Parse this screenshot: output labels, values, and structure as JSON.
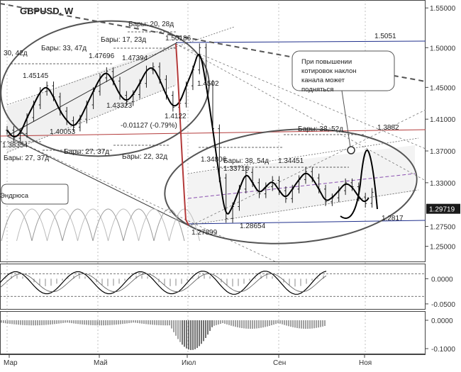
{
  "chart_data": {
    "type": "line",
    "title": "GBPUSD, W",
    "price_panel": {
      "ylim": [
        1.23,
        1.56
      ],
      "y_ticks": [
        "1.55000",
        "1.50000",
        "1.45000",
        "1.41000",
        "1.37000",
        "1.33000",
        "1.29719",
        "1.27500",
        "1.25000"
      ],
      "current_price": "1.29719",
      "series": [
        {
          "name": "",
          "values": [
            [
              0,
              1.396
            ],
            [
              1,
              1.386
            ],
            [
              2,
              1.392
            ],
            [
              3,
              1.412
            ],
            [
              4,
              1.428
            ],
            [
              5,
              1.445
            ],
            [
              6,
              1.452
            ],
            [
              7,
              1.438
            ],
            [
              8,
              1.42
            ],
            [
              9,
              1.408
            ],
            [
              10,
              1.4
            ],
            [
              11,
              1.41
            ],
            [
              12,
              1.428
            ],
            [
              13,
              1.445
            ],
            [
              14,
              1.462
            ],
            [
              15,
              1.47
            ],
            [
              16,
              1.458
            ],
            [
              17,
              1.44
            ],
            [
              18,
              1.432
            ],
            [
              19,
              1.441
            ],
            [
              20,
              1.455
            ],
            [
              21,
              1.472
            ],
            [
              22,
              1.476
            ],
            [
              23,
              1.46
            ],
            [
              24,
              1.44
            ],
            [
              25,
              1.425
            ],
            [
              26,
              1.43
            ],
            [
              27,
              1.452
            ],
            [
              28,
              1.472
            ],
            [
              29,
              1.5
            ],
            [
              30,
              1.454
            ],
            [
              31,
              1.398
            ],
            [
              32,
              1.336
            ],
            [
              33,
              1.285
            ],
            [
              34,
              1.3
            ],
            [
              35,
              1.322
            ],
            [
              36,
              1.343
            ],
            [
              37,
              1.33
            ],
            [
              38,
              1.316
            ],
            [
              39,
              1.325
            ],
            [
              40,
              1.333
            ],
            [
              41,
              1.32
            ],
            [
              42,
              1.31
            ],
            [
              43,
              1.322
            ],
            [
              44,
              1.334
            ],
            [
              45,
              1.344
            ],
            [
              46,
              1.336
            ],
            [
              47,
              1.322
            ],
            [
              48,
              1.306
            ],
            [
              49,
              1.311
            ],
            [
              50,
              1.32
            ],
            [
              51,
              1.33
            ],
            [
              52,
              1.325
            ],
            [
              53,
              1.312
            ],
            [
              54,
              1.304
            ],
            [
              55,
              1.318
            ]
          ]
        }
      ],
      "annotations": {
        "price_labels": [
          "1.50186",
          "1.47696",
          "1.47394",
          "1.45145",
          "1.43323",
          "1.4502",
          "1.4122",
          "1.40053",
          "1.38354",
          "-0.01127 (-0.79%)",
          "1.5051",
          "1.3882",
          "1.34806",
          "1.33715",
          "1.34451",
          "1.28654",
          "1.27899",
          "1.2817"
        ],
        "bar_labels": [
          "Бары: 20, 28д",
          "Бары: 17, 23д",
          "Бары: 33, 47д",
          "30, 42д",
          "Бары: 27, 37д",
          "Бары: 27, 37д",
          "Бары: 22, 32д",
          "Бары: 38, 52д",
          "Бары: 38, 54д"
        ],
        "callout_left": "Эндрюса",
        "callout_right": [
          "При повышении",
          "котировок наклон",
          "канала может",
          "подняться"
        ]
      }
    },
    "oscillator_1": {
      "y_ticks": [
        "0.0000",
        "-0.0500"
      ],
      "ylim": [
        -0.06,
        0.03
      ]
    },
    "oscillator_2": {
      "y_ticks": [
        "0.0000",
        "-0.1000"
      ],
      "ylim": [
        -0.12,
        0.03
      ]
    },
    "x_ticks": [
      "Мар",
      "Май",
      "Июл",
      "Сен",
      "Ноя"
    ]
  },
  "colors": {
    "price": "#000000",
    "resistance_line": "#1f2f8c",
    "support_red": "#b33a3a",
    "channel_mid": "#8a4fb0",
    "ellipse": "#555555",
    "grid": "#888888"
  }
}
